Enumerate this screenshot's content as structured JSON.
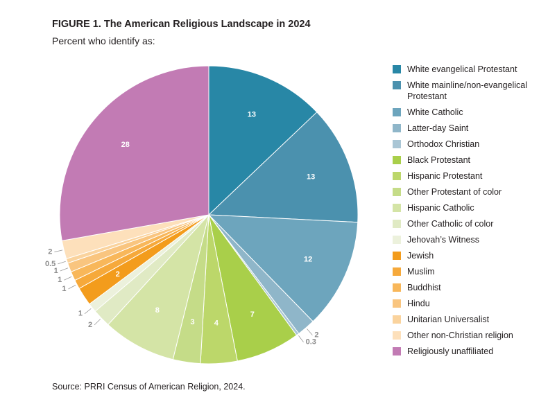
{
  "chart_data": {
    "type": "pie",
    "title": "FIGURE 1.  The American Religious Landscape in 2024",
    "subtitle": "Percent who identify as:",
    "source": "Source: PRRI Census of American Religion, 2024.",
    "slices": [
      {
        "label": "White evangelical Protestant",
        "value": 13,
        "display": "13",
        "color": "#2887a6"
      },
      {
        "label": "White mainline/non-evangelical Protestant",
        "value": 13,
        "display": "13",
        "color": "#4b91ae"
      },
      {
        "label": "White Catholic",
        "value": 12,
        "display": "12",
        "color": "#6da5bd"
      },
      {
        "label": "Latter-day Saint",
        "value": 2,
        "display": "2",
        "color": "#8fb6c9"
      },
      {
        "label": "Orthodox Christian",
        "value": 0.3,
        "display": "0.3",
        "color": "#aac6d5"
      },
      {
        "label": "Black Protestant",
        "value": 7,
        "display": "7",
        "color": "#a9cf4a"
      },
      {
        "label": "Hispanic Protestant",
        "value": 4,
        "display": "4",
        "color": "#bcd76a"
      },
      {
        "label": "Other Protestant of color",
        "value": 3,
        "display": "3",
        "color": "#c5dc88"
      },
      {
        "label": "Hispanic Catholic",
        "value": 8,
        "display": "8",
        "color": "#d4e4a6"
      },
      {
        "label": "Other Catholic of color",
        "value": 2,
        "display": "2",
        "color": "#e0eac4"
      },
      {
        "label": "Jehovah's Witness",
        "value": 1,
        "display": "1",
        "color": "#ecf1dc"
      },
      {
        "label": "Jewish",
        "value": 2,
        "display": "2",
        "color": "#f39c1c"
      },
      {
        "label": "Muslim",
        "value": 1,
        "display": "1",
        "color": "#f6a93b"
      },
      {
        "label": "Buddhist",
        "value": 1,
        "display": "1",
        "color": "#f8b75a"
      },
      {
        "label": "Hindu",
        "value": 1,
        "display": "1",
        "color": "#f9c57f"
      },
      {
        "label": "Unitarian Universalist",
        "value": 0.5,
        "display": "0.5",
        "color": "#fad39d"
      },
      {
        "label": "Other non-Christian religion",
        "value": 2,
        "display": "2",
        "color": "#fde0bb"
      },
      {
        "label": "Religiously unaffiliated",
        "value": 28,
        "display": "28",
        "color": "#c27bb4"
      }
    ]
  },
  "legend": {
    "items": [
      "White evangelical Protestant",
      "White mainline/non-evangelical Protestant",
      "White Catholic",
      "Latter-day Saint",
      "Orthodox Christian",
      "Black Protestant",
      "Hispanic Protestant",
      "Other Protestant of color",
      "Hispanic Catholic",
      "Other Catholic of color",
      "Jehovah’s Witness",
      "Jewish",
      "Muslim",
      "Buddhist",
      "Hindu",
      "Unitarian Universalist",
      "Other non-Christian religion",
      "Religiously unaffiliated"
    ]
  }
}
